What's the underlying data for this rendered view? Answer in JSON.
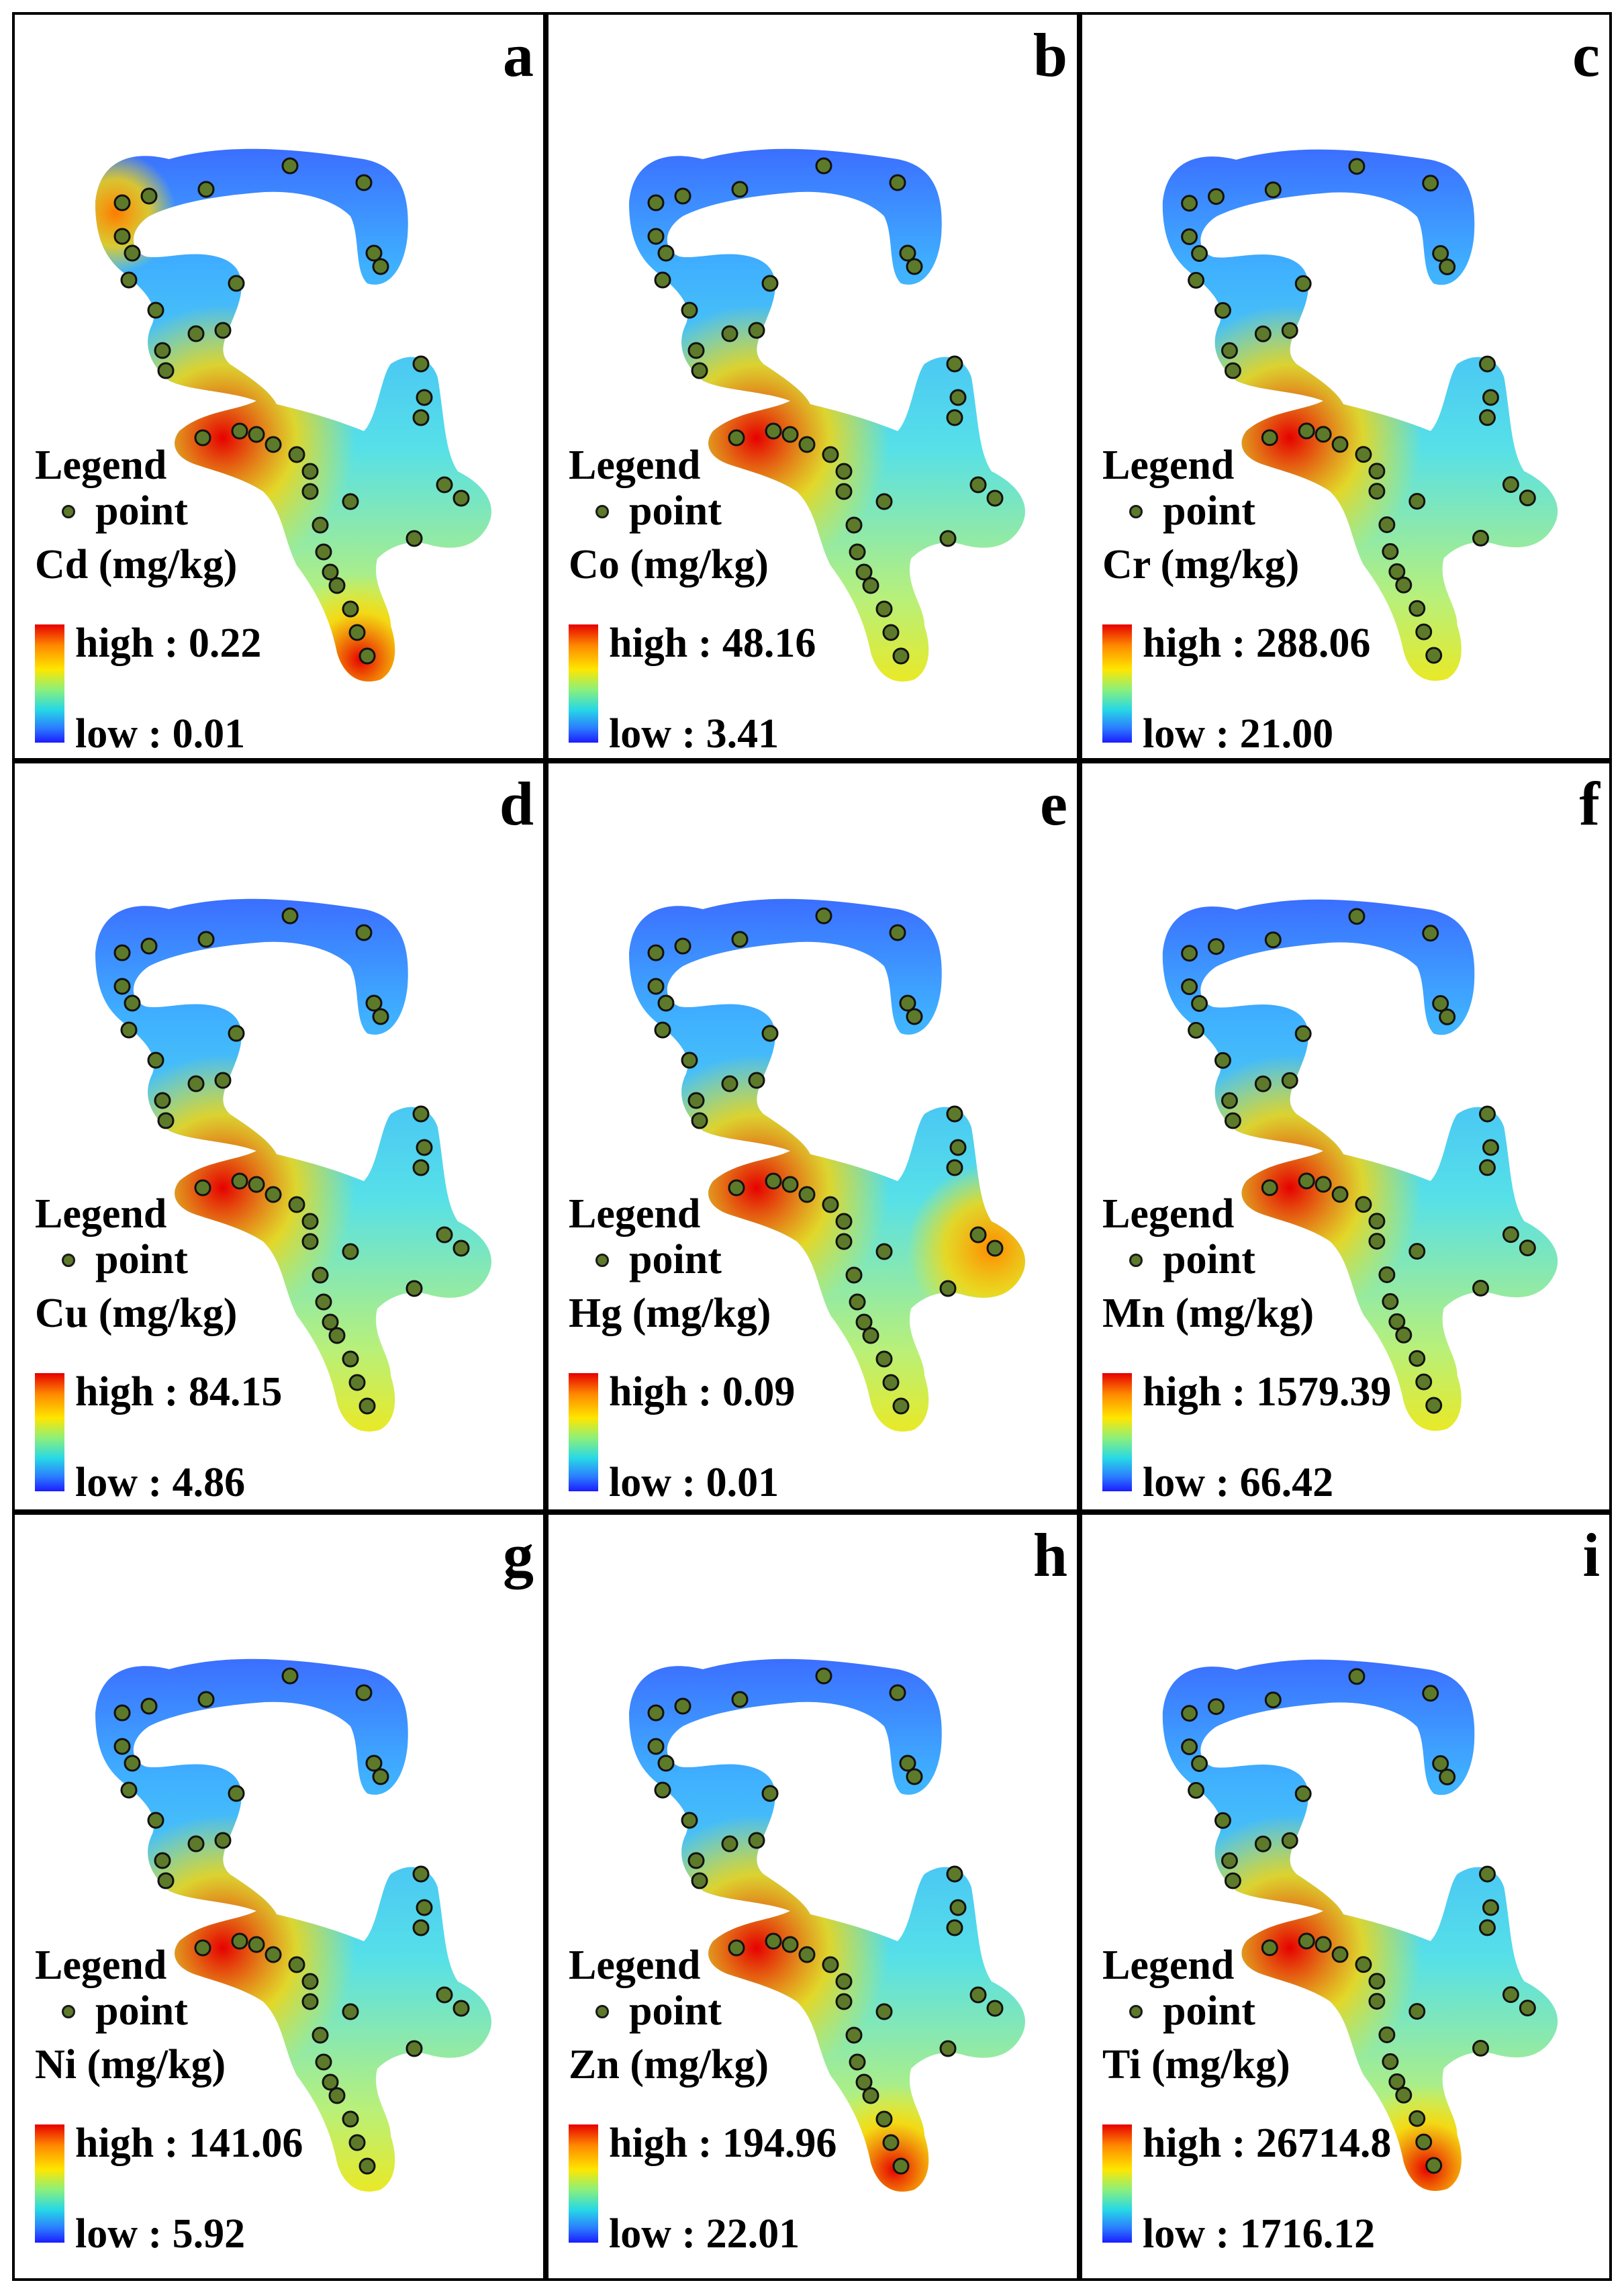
{
  "panels": [
    {
      "letter": "a",
      "legend_title": "Legend",
      "point_label": "point",
      "unit": "Cd (mg/kg)",
      "high": "high : 0.22",
      "low": "low : 0.01",
      "hotspots": [
        "west",
        "north-west",
        "south"
      ]
    },
    {
      "letter": "b",
      "legend_title": "Legend",
      "point_label": "point",
      "unit": "Co (mg/kg)",
      "high": "high : 48.16",
      "low": "low : 3.41",
      "hotspots": [
        "west"
      ]
    },
    {
      "letter": "c",
      "legend_title": "Legend",
      "point_label": "point",
      "unit": "Cr (mg/kg)",
      "high": "high : 288.06",
      "low": "low : 21.00",
      "hotspots": [
        "west"
      ]
    },
    {
      "letter": "d",
      "legend_title": "Legend",
      "point_label": "point",
      "unit": "Cu (mg/kg)",
      "high": "high : 84.15",
      "low": "low : 4.86",
      "hotspots": [
        "west"
      ]
    },
    {
      "letter": "e",
      "legend_title": "Legend",
      "point_label": "point",
      "unit": "Hg (mg/kg)",
      "high": "high : 0.09",
      "low": "low : 0.01",
      "hotspots": [
        "west",
        "east"
      ]
    },
    {
      "letter": "f",
      "legend_title": "Legend",
      "point_label": "point",
      "unit": "Mn (mg/kg)",
      "high": "high : 1579.39",
      "low": "low : 66.42",
      "hotspots": [
        "west"
      ]
    },
    {
      "letter": "g",
      "legend_title": "Legend",
      "point_label": "point",
      "unit": "Ni (mg/kg)",
      "high": "high : 141.06",
      "low": "low : 5.92",
      "hotspots": [
        "west"
      ]
    },
    {
      "letter": "h",
      "legend_title": "Legend",
      "point_label": "point",
      "unit": "Zn (mg/kg)",
      "high": "high : 194.96",
      "low": "low : 22.01",
      "hotspots": [
        "west",
        "south"
      ]
    },
    {
      "letter": "i",
      "legend_title": "Legend",
      "point_label": "point",
      "unit": "Ti (mg/kg)",
      "high": "high : 26714.8",
      "low": "low : 1716.12",
      "hotspots": [
        "west",
        "south"
      ]
    }
  ],
  "colors": {
    "high": "#e60000",
    "mid": "#ffe600",
    "low": "#1c1cff",
    "point": "#5d7a2a",
    "border": "#000000"
  },
  "icons": {
    "sample_point": "circle-dot-icon",
    "color_ramp": "gradient-ramp-icon"
  }
}
